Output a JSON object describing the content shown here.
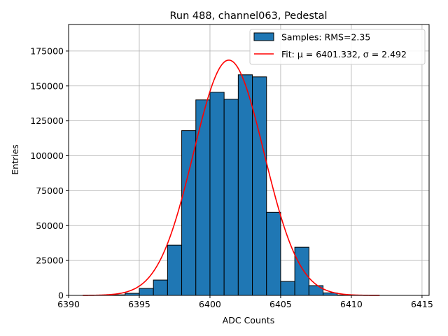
{
  "chart_data": {
    "type": "bar",
    "title": "Run 488, channel063, Pedestal",
    "xlabel": "ADC Counts",
    "ylabel": "Entries",
    "xlim": [
      6390,
      6415.5
    ],
    "ylim": [
      0,
      194000
    ],
    "xticks": [
      6390,
      6395,
      6400,
      6405,
      6410,
      6415
    ],
    "yticks": [
      0,
      25000,
      50000,
      75000,
      100000,
      125000,
      150000,
      175000
    ],
    "grid": true,
    "legend_position": "top-right",
    "bin_width": 1,
    "bins": [
      {
        "x": 6393,
        "y": 400
      },
      {
        "x": 6394,
        "y": 1500
      },
      {
        "x": 6395,
        "y": 5000
      },
      {
        "x": 6396,
        "y": 11000
      },
      {
        "x": 6397,
        "y": 36000
      },
      {
        "x": 6398,
        "y": 118000
      },
      {
        "x": 6399,
        "y": 140000
      },
      {
        "x": 6400,
        "y": 145500
      },
      {
        "x": 6401,
        "y": 140500
      },
      {
        "x": 6402,
        "y": 158000
      },
      {
        "x": 6403,
        "y": 156500
      },
      {
        "x": 6404,
        "y": 59500
      },
      {
        "x": 6405,
        "y": 10000
      },
      {
        "x": 6406,
        "y": 34500
      },
      {
        "x": 6407,
        "y": 7000
      },
      {
        "x": 6408,
        "y": 1800
      },
      {
        "x": 6409,
        "y": 300
      }
    ],
    "series": [
      {
        "name": "Samples: RMS=2.35",
        "kind": "histogram",
        "color": "#1f77b4",
        "edgecolor": "#000000"
      },
      {
        "name": "Fit: μ = 6401.332, σ = 2.492",
        "kind": "gaussian",
        "color": "#ff0000",
        "mu": 6401.332,
        "sigma": 2.492,
        "amplitude": 168500,
        "x_range": [
          6391,
          6412
        ]
      }
    ]
  }
}
